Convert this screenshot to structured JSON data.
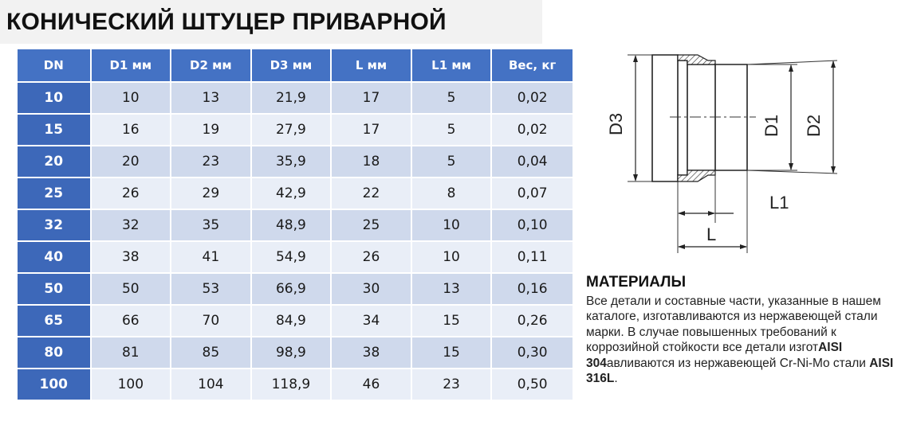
{
  "title": "КОНИЧЕСКИЙ ШТУЦЕР ПРИВАРНОЙ",
  "table": {
    "headers": [
      "DN",
      "D1 мм",
      "D2  мм",
      "D3  мм",
      "L мм",
      "L1 мм",
      "Вес, кг"
    ],
    "rows": [
      [
        "10",
        "10",
        "13",
        "21,9",
        "17",
        "5",
        "0,02"
      ],
      [
        "15",
        "16",
        "19",
        "27,9",
        "17",
        "5",
        "0,02"
      ],
      [
        "20",
        "20",
        "23",
        "35,9",
        "18",
        "5",
        "0,04"
      ],
      [
        "25",
        "26",
        "29",
        "42,9",
        "22",
        "8",
        "0,07"
      ],
      [
        "32",
        "32",
        "35",
        "48,9",
        "25",
        "10",
        "0,10"
      ],
      [
        "40",
        "38",
        "41",
        "54,9",
        "26",
        "10",
        "0,11"
      ],
      [
        "50",
        "50",
        "53",
        "66,9",
        "30",
        "13",
        "0,16"
      ],
      [
        "65",
        "66",
        "70",
        "84,9",
        "34",
        "15",
        "0,26"
      ],
      [
        "80",
        "81",
        "85",
        "98,9",
        "38",
        "15",
        "0,30"
      ],
      [
        "100",
        "100",
        "104",
        "118,9",
        "46",
        "23",
        "0,50"
      ]
    ]
  },
  "drawing": {
    "labels": {
      "d3": "D3",
      "d1": "D1",
      "d2": "D2",
      "l": "L",
      "l1": "L1"
    }
  },
  "materials": {
    "heading": "МАТЕРИАЛЫ",
    "text_1": "Все детали и составные части, указанные в нашем каталоге, изготавливаются из нержавеющей стали марки. В случае повышенных требований к коррозийной стойкости все детали изгот",
    "bold_1": "AISI 304",
    "text_2": "авливаются из нержавеющей Cr-Ni-Mo стали ",
    "bold_2": "AISI 316L",
    "text_3": "."
  },
  "colors": {
    "header_blue": "#4472c4",
    "dn_blue": "#3d68b9",
    "row_dark": "#cfd9ec",
    "row_light": "#e9eef7"
  }
}
